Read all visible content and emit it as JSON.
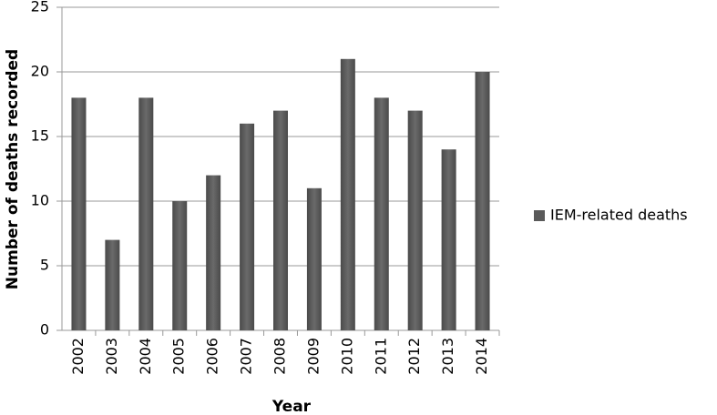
{
  "chart_data": {
    "type": "bar",
    "x_label": "Year",
    "y_label": "Number of deaths recorded",
    "categories": [
      "2002",
      "2003",
      "2004",
      "2005",
      "2006",
      "2007",
      "2008",
      "2009",
      "2010",
      "2011",
      "2012",
      "2013",
      "2014"
    ],
    "series": [
      {
        "name": "IEM-related deaths",
        "color": "#5a5a5a",
        "values": [
          18,
          7,
          18,
          10,
          12,
          16,
          17,
          11,
          21,
          18,
          17,
          14,
          20
        ]
      }
    ],
    "ylim": [
      0,
      25
    ],
    "yticks": [
      0,
      5,
      10,
      15,
      20,
      25
    ],
    "grid": true,
    "legend": "right"
  }
}
